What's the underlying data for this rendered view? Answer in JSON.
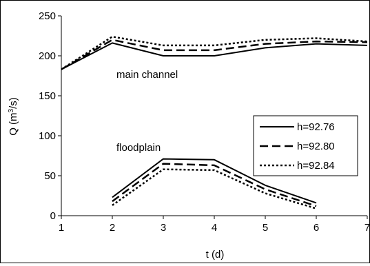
{
  "chart_data": {
    "type": "line",
    "xlabel": "t (d)",
    "ylabel_main": "Q (m",
    "ylabel_sup": "3",
    "ylabel_tail": "/s)",
    "xlim": [
      1,
      7
    ],
    "ylim": [
      0,
      250
    ],
    "xticks": [
      "1",
      "2",
      "3",
      "4",
      "5",
      "6",
      "7"
    ],
    "yticks": [
      "0",
      "50",
      "100",
      "150",
      "200",
      "250"
    ],
    "grid": false,
    "legend_position": "right-middle",
    "annotations": {
      "main_channel": "main channel",
      "floodplain": "floodplain"
    },
    "series": [
      {
        "name": "h=92.76",
        "style": "solid",
        "main_channel": {
          "x": [
            1,
            2,
            3,
            4,
            5,
            6,
            7
          ],
          "y": [
            183,
            216,
            200,
            200,
            210,
            215,
            213
          ]
        },
        "floodplain": {
          "x": [
            2,
            3,
            4,
            5,
            6
          ],
          "y": [
            23,
            71,
            70,
            38,
            16
          ]
        }
      },
      {
        "name": "h=92.80",
        "style": "dashed",
        "main_channel": {
          "x": [
            1,
            2,
            3,
            4,
            5,
            6,
            7
          ],
          "y": [
            183,
            220,
            207,
            207,
            215,
            218,
            217
          ]
        },
        "floodplain": {
          "x": [
            2,
            3,
            4,
            5,
            6
          ],
          "y": [
            18,
            65,
            63,
            33,
            12
          ]
        }
      },
      {
        "name": "h=92.84",
        "style": "dotted",
        "main_channel": {
          "x": [
            1,
            2,
            3,
            4,
            5,
            6,
            7
          ],
          "y": [
            183,
            224,
            213,
            213,
            220,
            222,
            218
          ]
        },
        "floodplain": {
          "x": [
            2,
            3,
            4,
            5,
            6
          ],
          "y": [
            13,
            58,
            57,
            28,
            9
          ]
        }
      }
    ]
  }
}
